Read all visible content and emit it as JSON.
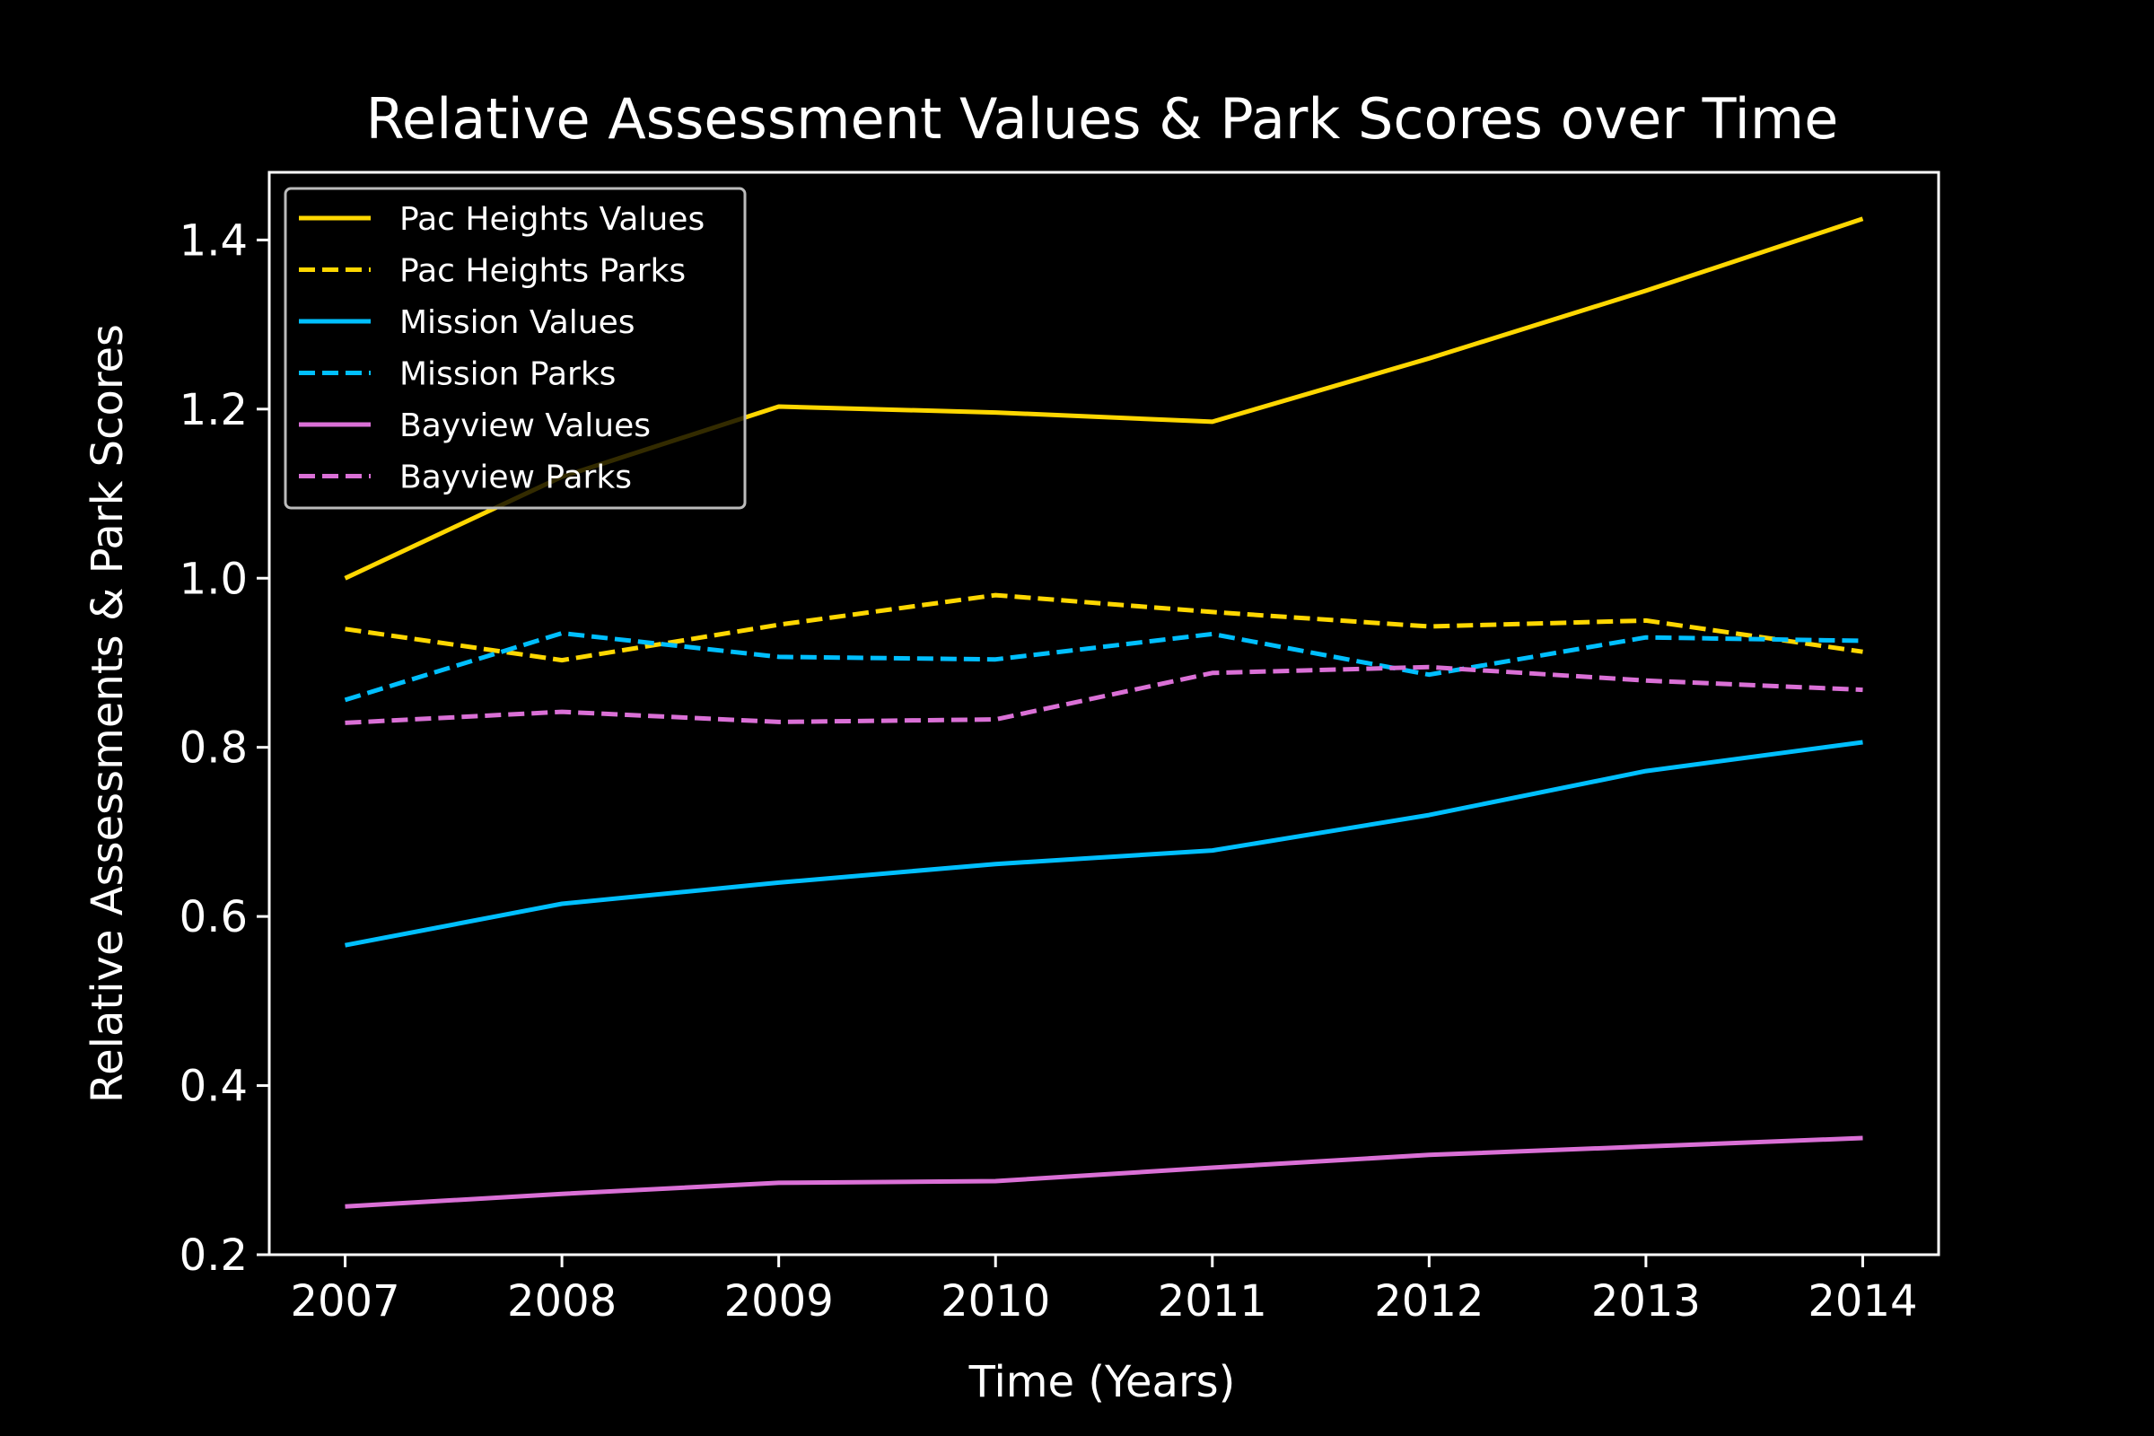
{
  "chart_data": {
    "type": "line",
    "title": "Relative Assessment Values & Park Scores over Time",
    "xlabel": "Time (Years)",
    "ylabel": "Relative Assessments & Park Scores",
    "x": [
      2007,
      2008,
      2009,
      2010,
      2011,
      2012,
      2013,
      2014
    ],
    "xlim": [
      2006.65,
      2014.35
    ],
    "ylim": [
      0.2,
      1.48
    ],
    "yticks": [
      0.2,
      0.4,
      0.6,
      0.8,
      1.0,
      1.2,
      1.4
    ],
    "ytick_labels": [
      "0.2",
      "0.4",
      "0.6",
      "0.8",
      "1.0",
      "1.2",
      "1.4"
    ],
    "grid": false,
    "background": "#000000",
    "legend_position": "top-left",
    "series": [
      {
        "name": "Pac Heights Values",
        "color": "#FFD700",
        "style": "solid",
        "values": [
          1.0,
          1.12,
          1.203,
          1.196,
          1.185,
          1.26,
          1.34,
          1.425
        ]
      },
      {
        "name": "Pac Heights Parks",
        "color": "#FFD700",
        "style": "dashed",
        "values": [
          0.94,
          0.903,
          0.945,
          0.98,
          0.96,
          0.943,
          0.95,
          0.913
        ]
      },
      {
        "name": "Mission Values",
        "color": "#00BFFF",
        "style": "solid",
        "values": [
          0.566,
          0.615,
          0.64,
          0.662,
          0.678,
          0.72,
          0.772,
          0.806
        ]
      },
      {
        "name": "Mission Parks",
        "color": "#00BFFF",
        "style": "dashed",
        "values": [
          0.856,
          0.935,
          0.907,
          0.904,
          0.934,
          0.886,
          0.93,
          0.926
        ]
      },
      {
        "name": "Bayview Values",
        "color": "#DA70D6",
        "style": "solid",
        "values": [
          0.257,
          0.272,
          0.285,
          0.287,
          0.303,
          0.318,
          0.328,
          0.338
        ]
      },
      {
        "name": "Bayview Parks",
        "color": "#DA70D6",
        "style": "dashed",
        "values": [
          0.829,
          0.842,
          0.83,
          0.833,
          0.888,
          0.895,
          0.879,
          0.868
        ]
      }
    ]
  }
}
